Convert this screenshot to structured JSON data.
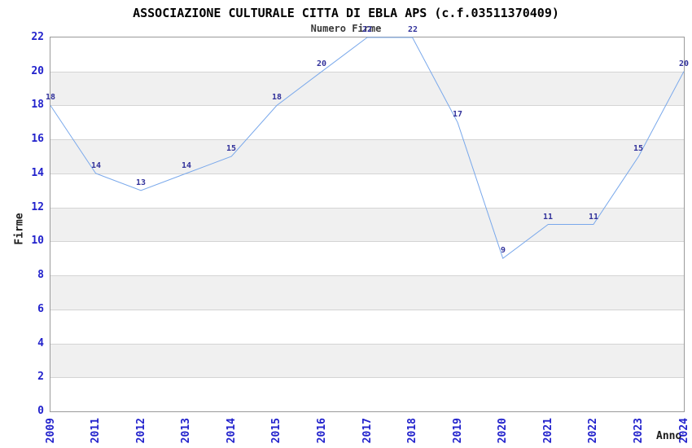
{
  "header": {
    "title": "ASSOCIAZIONE CULTURALE CITTA DI EBLA APS (c.f.03511370409)",
    "subtitle": "Numero Firme"
  },
  "chart_data": {
    "type": "line",
    "title": "ASSOCIAZIONE CULTURALE CITTA DI EBLA APS (c.f.03511370409)",
    "subtitle": "Numero Firme",
    "xlabel": "Anno",
    "ylabel": "Firme",
    "categories": [
      "2009",
      "2011",
      "2012",
      "2013",
      "2014",
      "2015",
      "2016",
      "2017",
      "2018",
      "2019",
      "2020",
      "2021",
      "2022",
      "2023",
      "2024"
    ],
    "values": [
      18,
      14,
      13,
      14,
      15,
      18,
      20,
      22,
      22,
      17,
      9,
      11,
      11,
      15,
      20
    ],
    "ylim": [
      0,
      22
    ],
    "ytick_step": 2,
    "grid": "horizontal-bands",
    "legend": "none",
    "point_labels_visible": true,
    "colors": {
      "line": "#79a8eb",
      "point_label": "#32329b",
      "tick_label": "#2222cc",
      "band": "#f0f0f0",
      "gridline": "#d4d4d4",
      "border": "#9a9a9a",
      "title": "#000000",
      "subtitle": "#3a3a3a",
      "background": "#ffffff"
    }
  }
}
